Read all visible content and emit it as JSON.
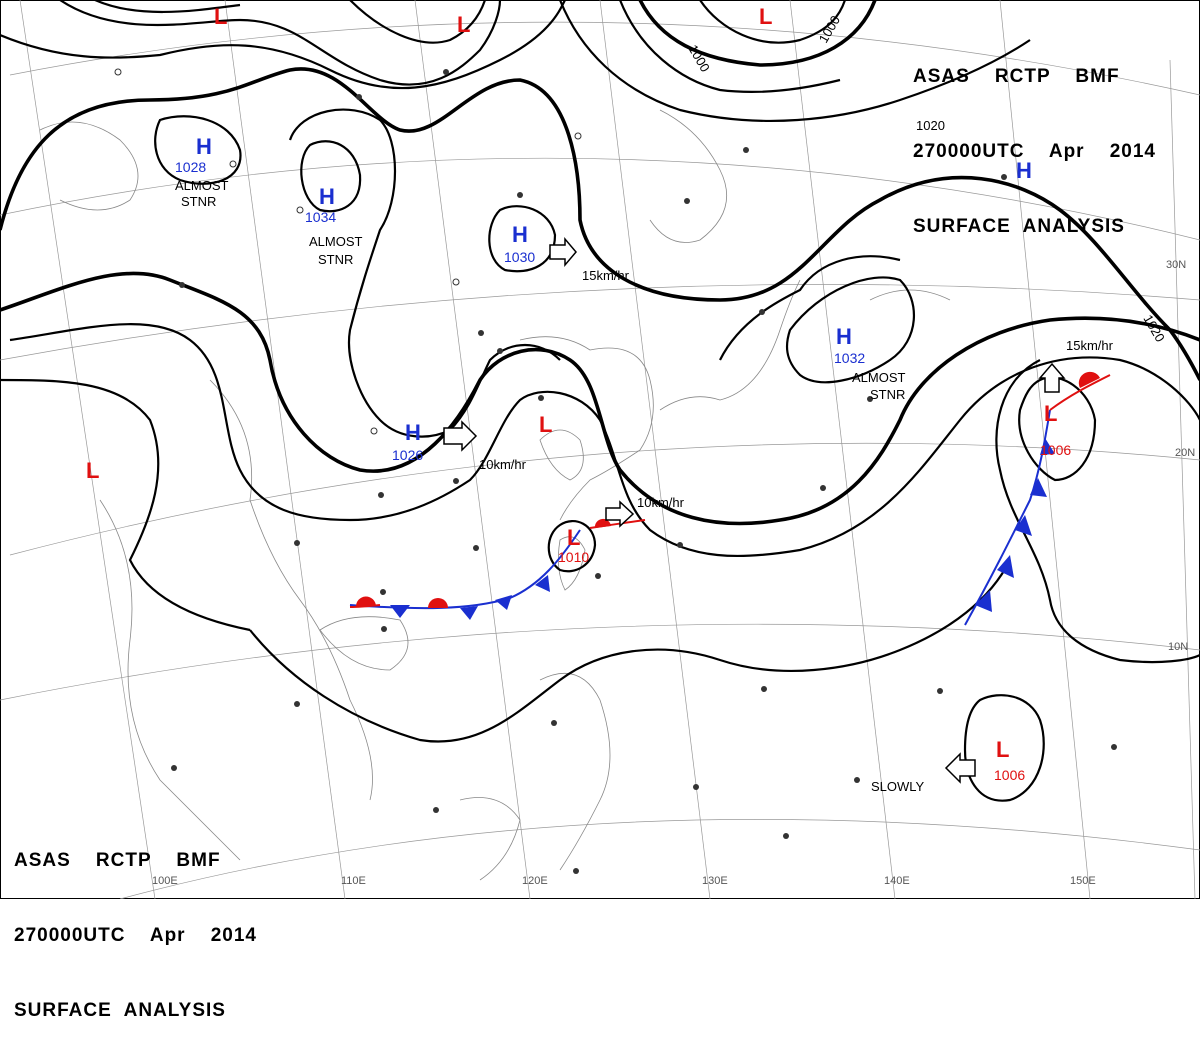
{
  "header": {
    "line1": "ASAS    RCTP    BMF",
    "line2": "270000UTC    Apr    2014",
    "line3": "SURFACE  ANALYSIS"
  },
  "footer": {
    "line1": "ASAS    RCTP    BMF",
    "line2": "270000UTC    Apr    2014",
    "line3": "SURFACE  ANALYSIS"
  },
  "pressure_systems": [
    {
      "id": "H-1028",
      "type": "H",
      "value": "1028",
      "note": "ALMOST STNR"
    },
    {
      "id": "H-1034",
      "type": "H",
      "value": "1034",
      "note": "ALMOST STNR"
    },
    {
      "id": "H-1030",
      "type": "H",
      "value": "1030",
      "note": "15km/hr"
    },
    {
      "id": "H-1026",
      "type": "H",
      "value": "1026",
      "note": "10km/hr"
    },
    {
      "id": "H-1032",
      "type": "H",
      "value": "1032",
      "note": "ALMOST STNR"
    },
    {
      "id": "H-ne",
      "type": "H",
      "value": "",
      "note": ""
    },
    {
      "id": "L-1010",
      "type": "L",
      "value": "1010",
      "note": "10km/hr"
    },
    {
      "id": "L-1006-e",
      "type": "L",
      "value": "1006",
      "note": "15km/hr"
    },
    {
      "id": "L-1006-se",
      "type": "L",
      "value": "1006",
      "note": "SLOWLY"
    },
    {
      "id": "L-w",
      "type": "L",
      "value": "",
      "note": ""
    },
    {
      "id": "L-taiwan",
      "type": "L",
      "value": "",
      "note": ""
    },
    {
      "id": "L-top1",
      "type": "L",
      "value": "",
      "note": ""
    },
    {
      "id": "L-top2",
      "type": "L",
      "value": "",
      "note": ""
    },
    {
      "id": "L-top3",
      "type": "L",
      "value": "",
      "note": ""
    }
  ],
  "isobar_labels": [
    "1000",
    "1000",
    "1020",
    "1020"
  ],
  "meridian_labels": [
    "100E",
    "110E",
    "120E",
    "130E",
    "140E",
    "150E"
  ],
  "parallel_labels": [
    "30N",
    "20N",
    "10N"
  ],
  "colors": {
    "high": "#1a2fd0",
    "low": "#e01010",
    "cold_front": "#1a2fd0",
    "warm_front": "#e01010",
    "isobar": "#000000"
  }
}
